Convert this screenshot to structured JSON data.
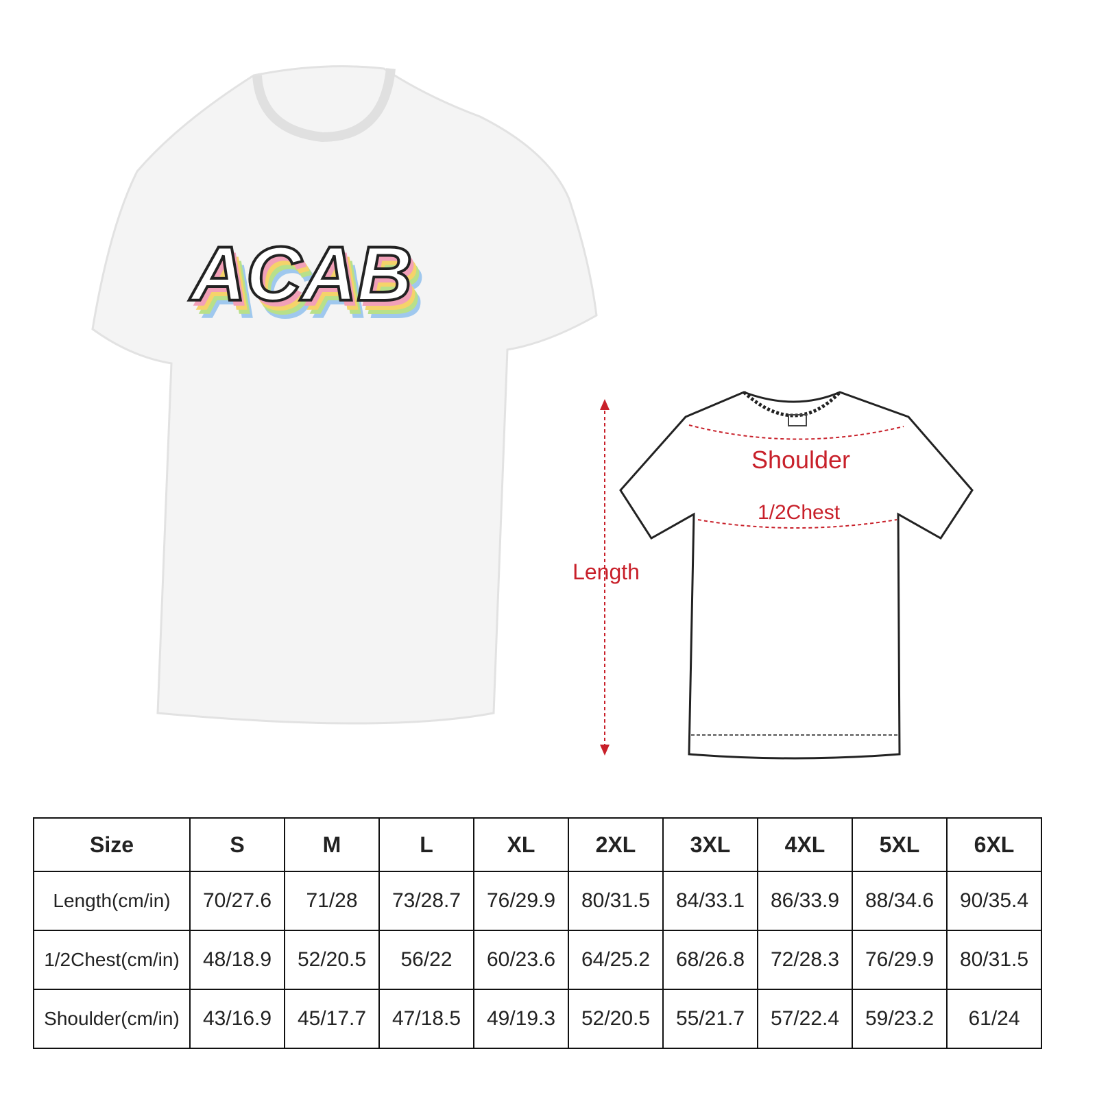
{
  "product": {
    "print_text": "ACAB",
    "shirt_color": "#f4f4f4",
    "print_colors": [
      "#f2a0b8",
      "#f5d36a",
      "#b8e08a",
      "#9fc8ee"
    ]
  },
  "diagram": {
    "labels": {
      "shoulder": "Shoulder",
      "chest": "1/2Chest",
      "length": "Length"
    },
    "accent_color": "#c8202a"
  },
  "size_chart": {
    "header": [
      "Size",
      "S",
      "M",
      "L",
      "XL",
      "2XL",
      "3XL",
      "4XL",
      "5XL",
      "6XL"
    ],
    "rows": [
      {
        "label": "Length(cm/in)",
        "values": [
          "70/27.6",
          "71/28",
          "73/28.7",
          "76/29.9",
          "80/31.5",
          "84/33.1",
          "86/33.9",
          "88/34.6",
          "90/35.4"
        ]
      },
      {
        "label": "1/2Chest(cm/in)",
        "values": [
          "48/18.9",
          "52/20.5",
          "56/22",
          "60/23.6",
          "64/25.2",
          "68/26.8",
          "72/28.3",
          "76/29.9",
          "80/31.5"
        ]
      },
      {
        "label": "Shoulder(cm/in)",
        "values": [
          "43/16.9",
          "45/17.7",
          "47/18.5",
          "49/19.3",
          "52/20.5",
          "55/21.7",
          "57/22.4",
          "59/23.2",
          "61/24"
        ]
      }
    ]
  }
}
